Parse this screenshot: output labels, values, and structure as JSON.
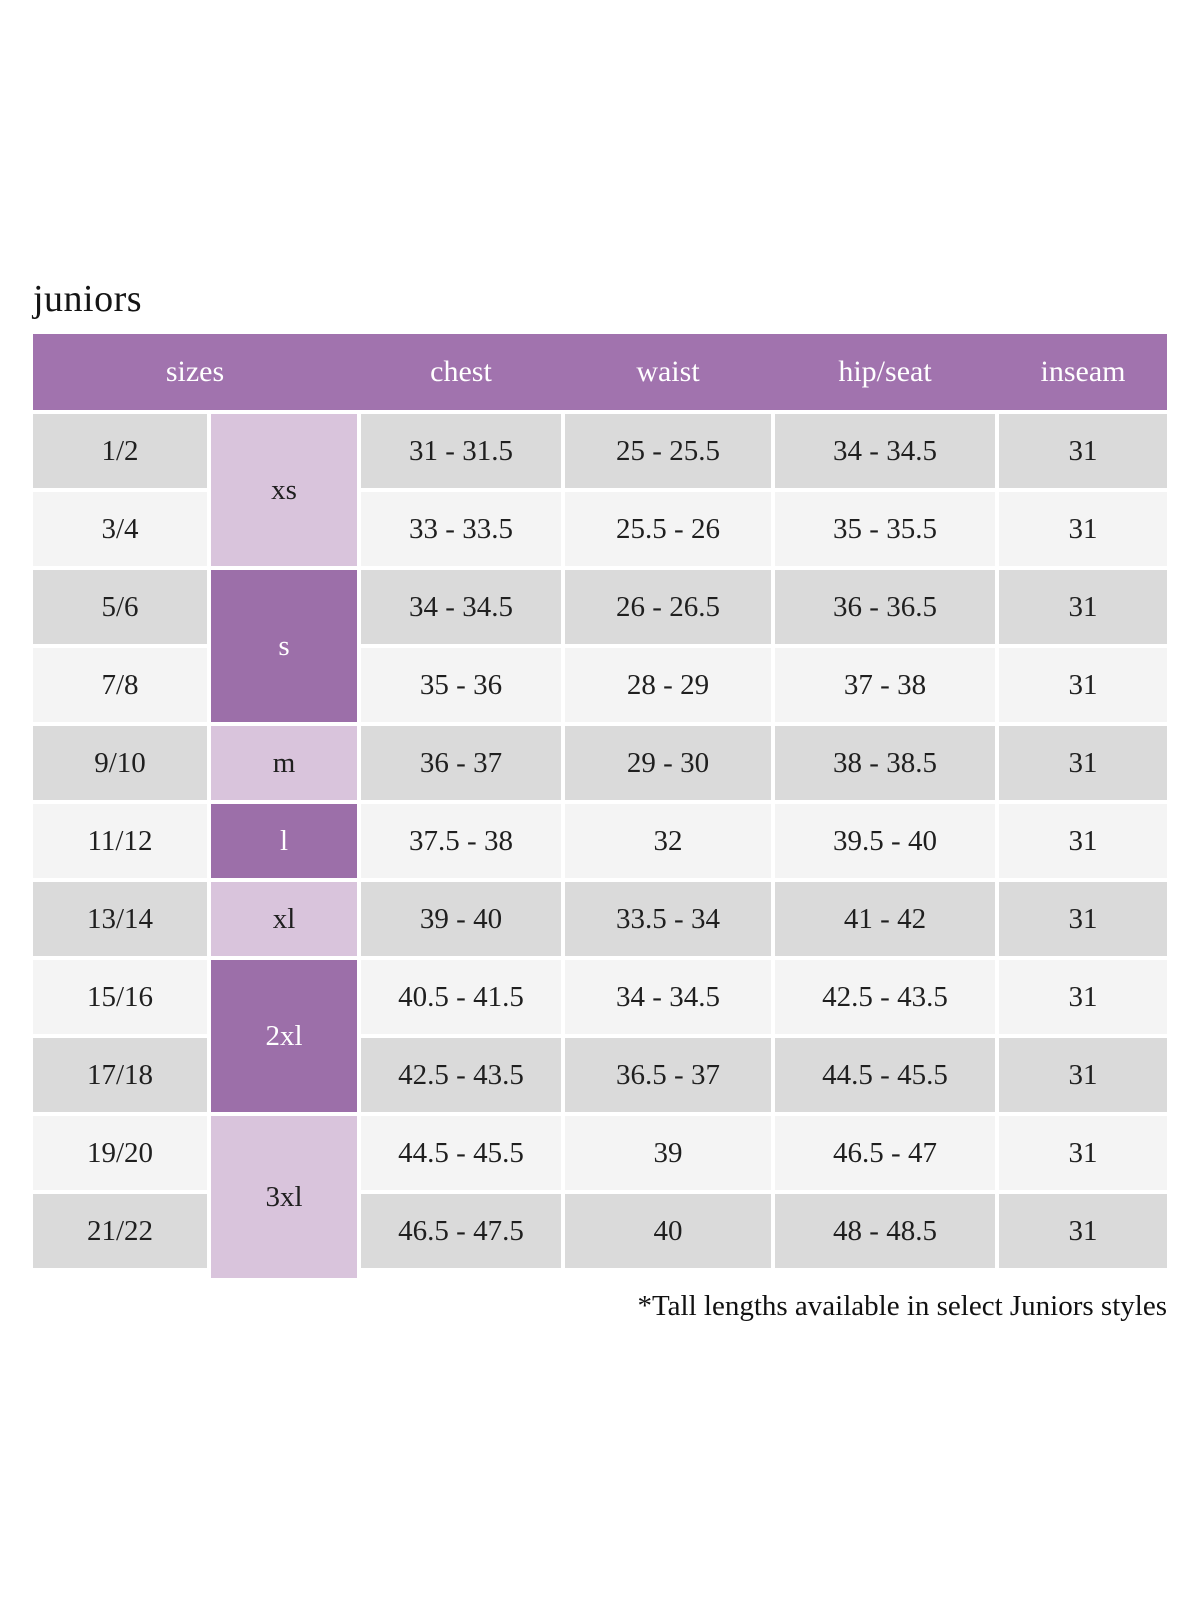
{
  "page": {
    "title": "juniors",
    "footnote": "*Tall lengths available in select Juniors styles"
  },
  "colors": {
    "header_bg": "#a173ae",
    "dark_purple": "#9c6fa9",
    "light_purple": "#d9c4dc",
    "row_gray": "#dadada",
    "row_light": "#f4f4f4"
  },
  "table": {
    "columns": [
      {
        "label": "sizes",
        "span": 2
      },
      {
        "label": "chest",
        "span": 1
      },
      {
        "label": "waist",
        "span": 1
      },
      {
        "label": "hip/seat",
        "span": 1
      },
      {
        "label": "inseam",
        "span": 1
      }
    ],
    "size_groups": [
      {
        "label": "xs",
        "rows": 2,
        "shade": "light"
      },
      {
        "label": "s",
        "rows": 2,
        "shade": "dark"
      },
      {
        "label": "m",
        "rows": 1,
        "shade": "light"
      },
      {
        "label": "l",
        "rows": 1,
        "shade": "dark"
      },
      {
        "label": "xl",
        "rows": 1,
        "shade": "light"
      },
      {
        "label": "2xl",
        "rows": 2,
        "shade": "dark"
      },
      {
        "label": "3xl",
        "rows": 2,
        "shade": "light"
      }
    ],
    "rows": [
      {
        "size": "1/2",
        "chest": "31 - 31.5",
        "waist": "25 - 25.5",
        "hip_seat": "34 - 34.5",
        "inseam": "31"
      },
      {
        "size": "3/4",
        "chest": "33 - 33.5",
        "waist": "25.5 - 26",
        "hip_seat": "35 - 35.5",
        "inseam": "31"
      },
      {
        "size": "5/6",
        "chest": "34 - 34.5",
        "waist": "26 - 26.5",
        "hip_seat": "36 - 36.5",
        "inseam": "31"
      },
      {
        "size": "7/8",
        "chest": "35 - 36",
        "waist": "28 - 29",
        "hip_seat": "37 - 38",
        "inseam": "31"
      },
      {
        "size": "9/10",
        "chest": "36 - 37",
        "waist": "29 - 30",
        "hip_seat": "38 - 38.5",
        "inseam": "31"
      },
      {
        "size": "11/12",
        "chest": "37.5 - 38",
        "waist": "32",
        "hip_seat": "39.5 - 40",
        "inseam": "31"
      },
      {
        "size": "13/14",
        "chest": "39 - 40",
        "waist": "33.5 - 34",
        "hip_seat": "41 - 42",
        "inseam": "31"
      },
      {
        "size": "15/16",
        "chest": "40.5 - 41.5",
        "waist": "34 - 34.5",
        "hip_seat": "42.5 - 43.5",
        "inseam": "31"
      },
      {
        "size": "17/18",
        "chest": "42.5 - 43.5",
        "waist": "36.5 - 37",
        "hip_seat": "44.5 - 45.5",
        "inseam": "31"
      },
      {
        "size": "19/20",
        "chest": "44.5 - 45.5",
        "waist": "39",
        "hip_seat": "46.5 - 47",
        "inseam": "31"
      },
      {
        "size": "21/22",
        "chest": "46.5 - 47.5",
        "waist": "40",
        "hip_seat": "48 - 48.5",
        "inseam": "31"
      }
    ]
  }
}
